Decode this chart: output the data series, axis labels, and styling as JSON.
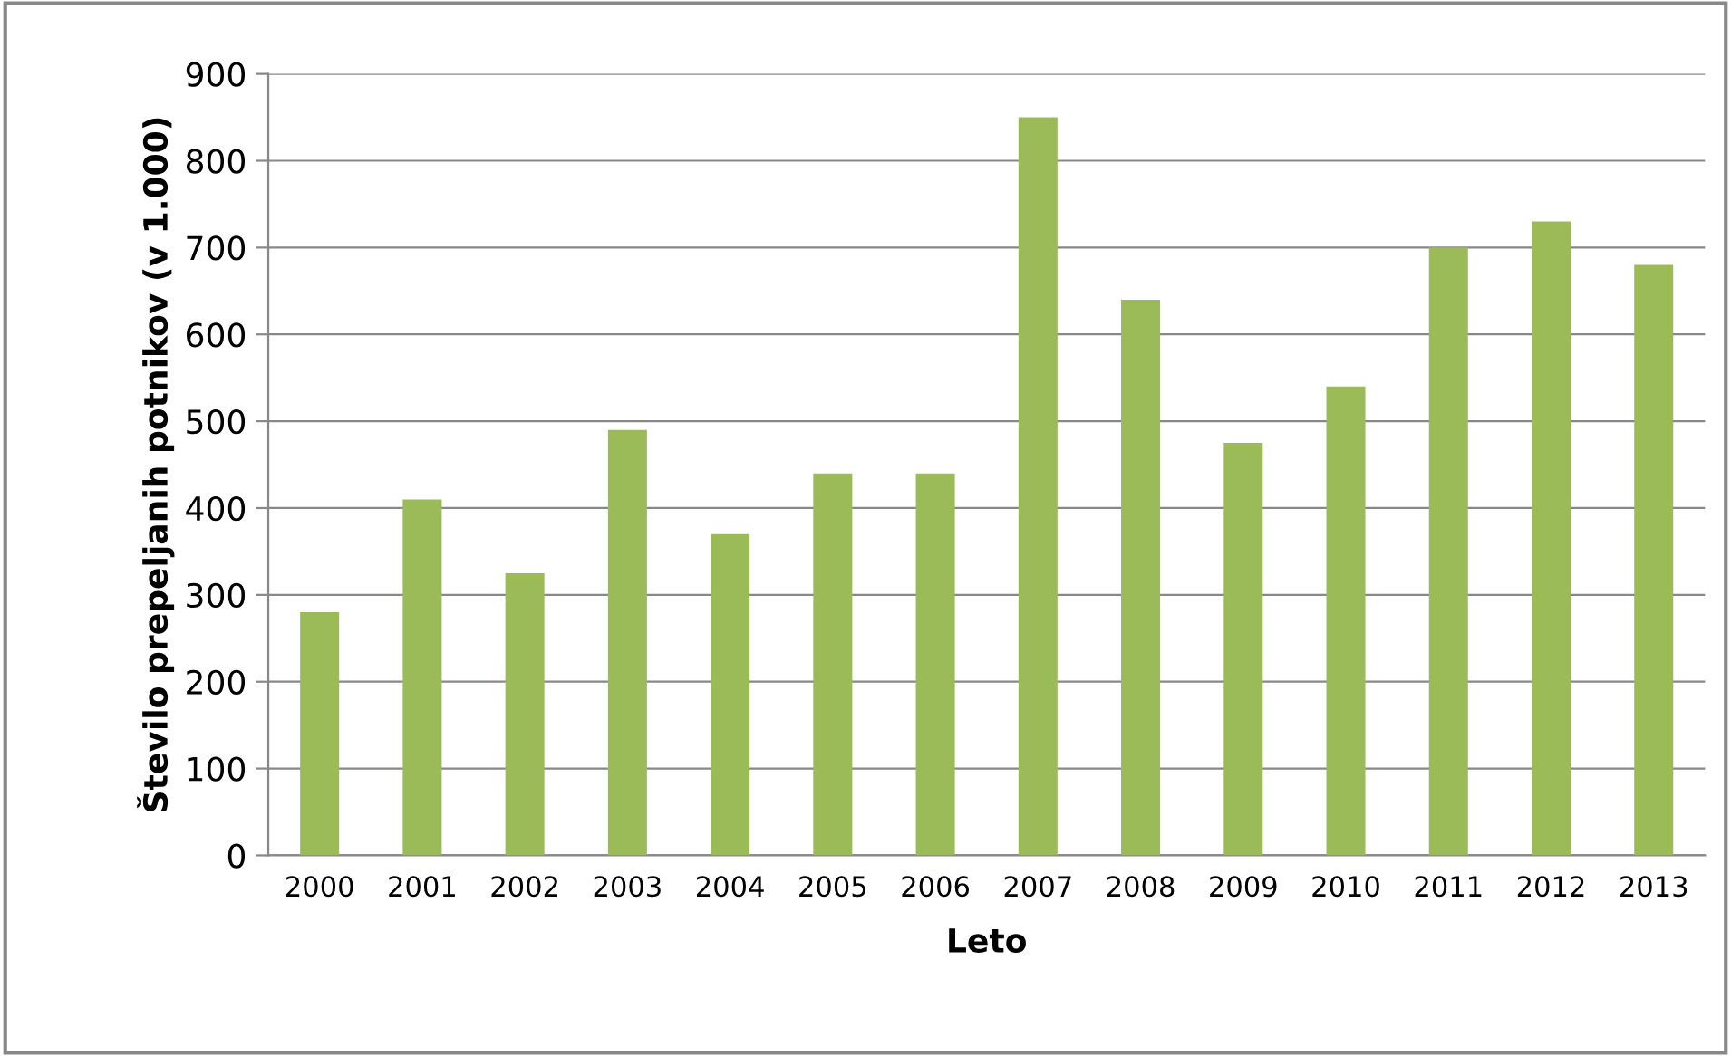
{
  "chart_data": {
    "type": "bar",
    "xlabel": "Leto",
    "ylabel": "Število prepeljanih potnikov (v 1.000)",
    "categories": [
      "2000",
      "2001",
      "2002",
      "2003",
      "2004",
      "2005",
      "2006",
      "2007",
      "2008",
      "2009",
      "2010",
      "2011",
      "2012",
      "2013"
    ],
    "values": [
      280,
      410,
      325,
      490,
      370,
      440,
      440,
      850,
      640,
      475,
      540,
      700,
      730,
      680
    ],
    "color": "#9bbb59",
    "ylim": [
      0,
      900
    ],
    "yticks": [
      0,
      100,
      200,
      300,
      400,
      500,
      600,
      700,
      800,
      900
    ],
    "grid": "y",
    "legend": false
  }
}
